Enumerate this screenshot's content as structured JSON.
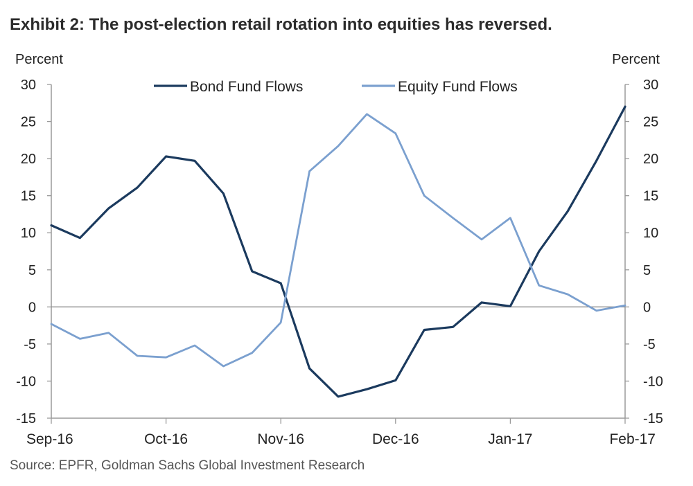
{
  "title": "Exhibit 2: The post-election retail rotation into equities has reversed.",
  "source": "Source: EPFR, Goldman Sachs Global Investment Research",
  "chart_data": {
    "type": "line",
    "title": "Exhibit 2: The post-election retail rotation into equities has reversed.",
    "ylabel_left": "Percent",
    "ylabel_right": "Percent",
    "ylim": [
      -15,
      30
    ],
    "yticks": [
      30,
      25,
      20,
      15,
      10,
      5,
      0,
      -5,
      -10,
      -15
    ],
    "xtick_labels": [
      "Sep-16",
      "Oct-16",
      "Nov-16",
      "Dec-16",
      "Jan-17",
      "Feb-17"
    ],
    "legend_position": "top-center",
    "zero_line": true,
    "grid": false,
    "series": [
      {
        "name": "Bond Fund Flows",
        "color": "#1b3a5e",
        "values": [
          11.0,
          9.3,
          13.3,
          16.1,
          20.3,
          19.7,
          15.3,
          4.8,
          3.2,
          -8.3,
          -12.1,
          -11.1,
          -9.9,
          -3.1,
          -2.7,
          0.6,
          0.1,
          7.5,
          12.9,
          19.7,
          27.0
        ]
      },
      {
        "name": "Equity Fund Flows",
        "color": "#7ba0cf",
        "values": [
          -2.3,
          -4.3,
          -3.5,
          -6.6,
          -6.8,
          -5.2,
          -8.0,
          -6.2,
          -2.1,
          18.3,
          21.7,
          26.0,
          23.4,
          15.0,
          12.0,
          9.1,
          12.0,
          2.9,
          1.7,
          -0.5,
          0.2
        ]
      }
    ]
  }
}
